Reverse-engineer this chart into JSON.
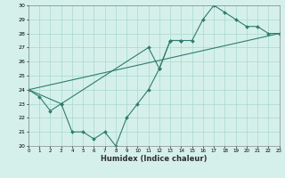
{
  "xlabel": "Humidex (Indice chaleur)",
  "series": {
    "jagged": {
      "x": [
        0,
        1,
        2,
        3,
        4,
        5,
        6,
        7,
        8,
        9,
        10,
        11,
        12,
        13,
        14
      ],
      "y": [
        24,
        23.5,
        22.5,
        23,
        21,
        21,
        20.5,
        21,
        20,
        22,
        23,
        24,
        25.5,
        27.5,
        27.5
      ]
    },
    "upper": {
      "x": [
        0,
        3,
        11,
        12,
        13,
        14,
        15,
        16,
        17,
        18,
        19,
        20,
        21,
        22,
        23
      ],
      "y": [
        24,
        23,
        27,
        25.5,
        27.5,
        27.5,
        27.5,
        29,
        30,
        29.5,
        29,
        28.5,
        28.5,
        28,
        28
      ]
    },
    "lower": {
      "x": [
        0,
        23
      ],
      "y": [
        24,
        28
      ]
    }
  },
  "color": "#2e7d6e",
  "bg_color": "#d5f0ea",
  "grid_color": "#a8d8cc",
  "ylim": [
    20,
    30
  ],
  "xlim": [
    0,
    23
  ],
  "yticks": [
    20,
    21,
    22,
    23,
    24,
    25,
    26,
    27,
    28,
    29,
    30
  ],
  "xticks": [
    0,
    1,
    2,
    3,
    4,
    5,
    6,
    7,
    8,
    9,
    10,
    11,
    12,
    13,
    14,
    15,
    16,
    17,
    18,
    19,
    20,
    21,
    22,
    23
  ],
  "xtick_labels": [
    "0",
    "1",
    "2",
    "3",
    "4",
    "5",
    "6",
    "7",
    "8",
    "9",
    "10",
    "11",
    "12",
    "13",
    "14",
    "15",
    "16",
    "17",
    "18",
    "19",
    "20",
    "21",
    "22",
    "23"
  ]
}
